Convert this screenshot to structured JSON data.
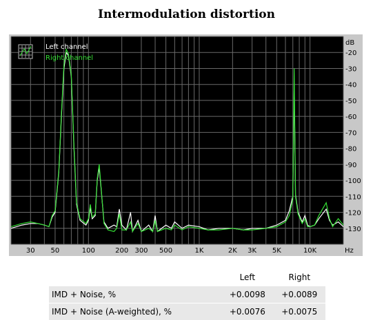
{
  "chart_data": {
    "type": "line",
    "title": "Intermodulation distortion",
    "xlabel": "",
    "ylabel": "",
    "x_unit": "Hz",
    "y_unit": "dB",
    "x_scale": "log",
    "xlim": [
      20,
      20000
    ],
    "ylim": [
      -140,
      -10
    ],
    "grid": true,
    "legend_placement": "top-left",
    "x_ticks": [
      {
        "label": "30",
        "value": 30
      },
      {
        "label": "50",
        "value": 50
      },
      {
        "label": "100",
        "value": 100
      },
      {
        "label": "200",
        "value": 200
      },
      {
        "label": "300",
        "value": 300
      },
      {
        "label": "500",
        "value": 500
      },
      {
        "label": "1K",
        "value": 1000
      },
      {
        "label": "2K",
        "value": 2000
      },
      {
        "label": "3K",
        "value": 3000
      },
      {
        "label": "5K",
        "value": 5000
      },
      {
        "label": "10K",
        "value": 10000
      }
    ],
    "y_ticks": [
      -20,
      -30,
      -40,
      -50,
      -60,
      -70,
      -80,
      -90,
      -100,
      -110,
      -120,
      -130
    ],
    "series": [
      {
        "name": "Left channel",
        "color": "#ffffff",
        "points": [
          [
            20,
            -130
          ],
          [
            25,
            -128
          ],
          [
            30,
            -127
          ],
          [
            35,
            -127
          ],
          [
            40,
            -128
          ],
          [
            44,
            -129
          ],
          [
            47,
            -123
          ],
          [
            50,
            -120
          ],
          [
            54,
            -95
          ],
          [
            57,
            -60
          ],
          [
            60,
            -30
          ],
          [
            63,
            -20
          ],
          [
            66,
            -22
          ],
          [
            70,
            -35
          ],
          [
            74,
            -80
          ],
          [
            78,
            -115
          ],
          [
            84,
            -125
          ],
          [
            95,
            -128
          ],
          [
            100,
            -125
          ],
          [
            104,
            -117
          ],
          [
            108,
            -124
          ],
          [
            115,
            -122
          ],
          [
            120,
            -100
          ],
          [
            125,
            -92
          ],
          [
            130,
            -105
          ],
          [
            138,
            -126
          ],
          [
            150,
            -130
          ],
          [
            170,
            -128
          ],
          [
            180,
            -129
          ],
          [
            190,
            -118
          ],
          [
            200,
            -128
          ],
          [
            220,
            -131
          ],
          [
            240,
            -120
          ],
          [
            250,
            -132
          ],
          [
            280,
            -125
          ],
          [
            300,
            -132
          ],
          [
            350,
            -128
          ],
          [
            380,
            -132
          ],
          [
            400,
            -122
          ],
          [
            420,
            -132
          ],
          [
            500,
            -128
          ],
          [
            560,
            -130
          ],
          [
            600,
            -126
          ],
          [
            700,
            -130
          ],
          [
            800,
            -128
          ],
          [
            1000,
            -129
          ],
          [
            1200,
            -131
          ],
          [
            1500,
            -130
          ],
          [
            2000,
            -130
          ],
          [
            2500,
            -131
          ],
          [
            3000,
            -130
          ],
          [
            4000,
            -130
          ],
          [
            5000,
            -128
          ],
          [
            6000,
            -125
          ],
          [
            6500,
            -119
          ],
          [
            7000,
            -110
          ],
          [
            7200,
            -40
          ],
          [
            7400,
            -109
          ],
          [
            7800,
            -120
          ],
          [
            8500,
            -126
          ],
          [
            9000,
            -122
          ],
          [
            9500,
            -128
          ],
          [
            10000,
            -129
          ],
          [
            11000,
            -128
          ],
          [
            12000,
            -124
          ],
          [
            14000,
            -118
          ],
          [
            15000,
            -125
          ],
          [
            16000,
            -128
          ],
          [
            18000,
            -126
          ],
          [
            20000,
            -129
          ]
        ]
      },
      {
        "name": "Right channel",
        "color": "#33dd33",
        "points": [
          [
            20,
            -129
          ],
          [
            25,
            -127
          ],
          [
            30,
            -126
          ],
          [
            35,
            -127
          ],
          [
            40,
            -128
          ],
          [
            44,
            -129
          ],
          [
            47,
            -122
          ],
          [
            50,
            -119
          ],
          [
            54,
            -94
          ],
          [
            57,
            -58
          ],
          [
            60,
            -28
          ],
          [
            63,
            -18
          ],
          [
            66,
            -21
          ],
          [
            70,
            -34
          ],
          [
            74,
            -78
          ],
          [
            78,
            -114
          ],
          [
            84,
            -124
          ],
          [
            95,
            -127
          ],
          [
            100,
            -124
          ],
          [
            104,
            -115
          ],
          [
            108,
            -123
          ],
          [
            115,
            -121
          ],
          [
            120,
            -99
          ],
          [
            125,
            -90
          ],
          [
            130,
            -104
          ],
          [
            138,
            -127
          ],
          [
            150,
            -131
          ],
          [
            170,
            -132
          ],
          [
            180,
            -130
          ],
          [
            190,
            -121
          ],
          [
            200,
            -131
          ],
          [
            220,
            -131
          ],
          [
            240,
            -126
          ],
          [
            250,
            -132
          ],
          [
            280,
            -127
          ],
          [
            300,
            -132
          ],
          [
            350,
            -130
          ],
          [
            380,
            -132
          ],
          [
            400,
            -125
          ],
          [
            420,
            -132
          ],
          [
            500,
            -130
          ],
          [
            560,
            -131
          ],
          [
            600,
            -128
          ],
          [
            700,
            -131
          ],
          [
            800,
            -129
          ],
          [
            1000,
            -130
          ],
          [
            1200,
            -131
          ],
          [
            1500,
            -131
          ],
          [
            2000,
            -130
          ],
          [
            2500,
            -131
          ],
          [
            3000,
            -131
          ],
          [
            4000,
            -130
          ],
          [
            5000,
            -129
          ],
          [
            6000,
            -126
          ],
          [
            6500,
            -122
          ],
          [
            7000,
            -112
          ],
          [
            7200,
            -30
          ],
          [
            7400,
            -110
          ],
          [
            7800,
            -121
          ],
          [
            8500,
            -127
          ],
          [
            9000,
            -124
          ],
          [
            9500,
            -129
          ],
          [
            10000,
            -129
          ],
          [
            11000,
            -128
          ],
          [
            12000,
            -122
          ],
          [
            14000,
            -114
          ],
          [
            15000,
            -124
          ],
          [
            16000,
            -129
          ],
          [
            18000,
            -124
          ],
          [
            20000,
            -128
          ]
        ]
      }
    ]
  },
  "results": {
    "headers": [
      "",
      "Left",
      "Right"
    ],
    "rows": [
      {
        "label": "IMD + Noise, %",
        "left": "+0.0098",
        "right": "+0.0089"
      },
      {
        "label": "IMD + Noise (A-weighted), %",
        "left": "+0.0076",
        "right": "+0.0075"
      }
    ]
  }
}
